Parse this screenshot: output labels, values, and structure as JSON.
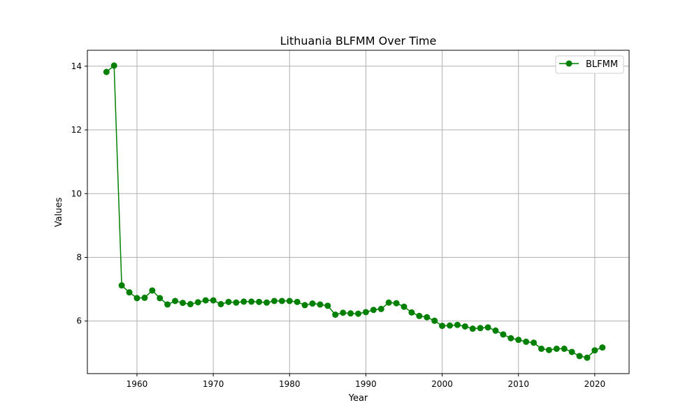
{
  "chart_data": {
    "type": "line",
    "title": "Lithuania BLFMM Over Time",
    "xlabel": "Year",
    "ylabel": "Values",
    "xlim": [
      1953.5,
      2024.5
    ],
    "ylim": [
      4.35,
      14.5
    ],
    "xticks": [
      1960,
      1970,
      1980,
      1990,
      2000,
      2010,
      2020
    ],
    "yticks": [
      6,
      8,
      10,
      12,
      14
    ],
    "grid": true,
    "legend_position": "top-right",
    "series": [
      {
        "name": "BLFMM",
        "color": "#008000",
        "marker": "circle",
        "x": [
          1956,
          1957,
          1958,
          1959,
          1960,
          1961,
          1962,
          1963,
          1964,
          1965,
          1966,
          1967,
          1968,
          1969,
          1970,
          1971,
          1972,
          1973,
          1974,
          1975,
          1976,
          1977,
          1978,
          1979,
          1980,
          1981,
          1982,
          1983,
          1984,
          1985,
          1986,
          1987,
          1988,
          1989,
          1990,
          1991,
          1992,
          1993,
          1994,
          1995,
          1996,
          1997,
          1998,
          1999,
          2000,
          2001,
          2002,
          2003,
          2004,
          2005,
          2006,
          2007,
          2008,
          2009,
          2010,
          2011,
          2012,
          2013,
          2014,
          2015,
          2016,
          2017,
          2018,
          2019,
          2020,
          2021
        ],
        "values": [
          13.82,
          14.02,
          7.12,
          6.9,
          6.72,
          6.73,
          6.96,
          6.72,
          6.52,
          6.63,
          6.57,
          6.53,
          6.59,
          6.65,
          6.65,
          6.53,
          6.6,
          6.58,
          6.61,
          6.61,
          6.6,
          6.58,
          6.63,
          6.63,
          6.63,
          6.6,
          6.5,
          6.55,
          6.52,
          6.48,
          6.2,
          6.26,
          6.24,
          6.23,
          6.28,
          6.35,
          6.38,
          6.58,
          6.56,
          6.45,
          6.27,
          6.16,
          6.12,
          6.01,
          5.85,
          5.86,
          5.88,
          5.83,
          5.76,
          5.78,
          5.8,
          5.7,
          5.58,
          5.46,
          5.41,
          5.35,
          5.32,
          5.13,
          5.09,
          5.13,
          5.13,
          5.03,
          4.9,
          4.85,
          5.08,
          5.17
        ]
      }
    ]
  }
}
